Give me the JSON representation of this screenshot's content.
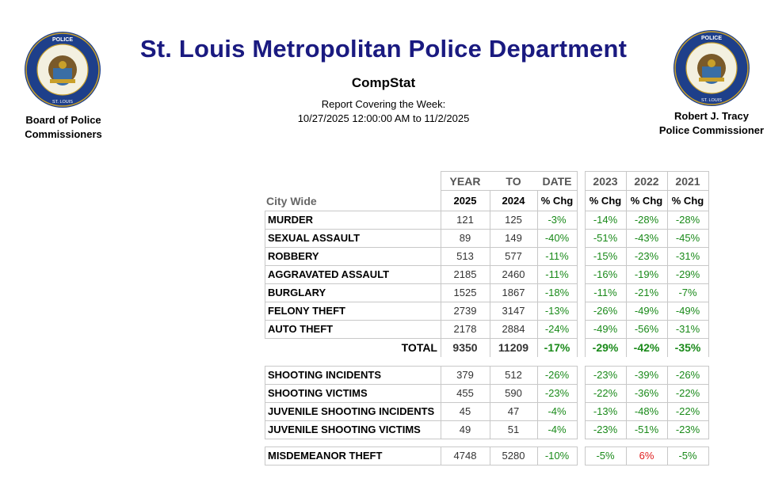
{
  "header": {
    "title": "St. Louis Metropolitan Police Department",
    "subtitle": "CompStat",
    "report_label": "Report Covering the Week:",
    "report_range": "10/27/2025 12:00:00 AM to 11/2/2025",
    "left_caption_1": "Board of Police",
    "left_caption_2": "Commissioners",
    "right_caption_1": "Robert J. Tracy",
    "right_caption_2": "Police Commissioner",
    "seal_text_top": "METROPOLITAN POLICE DEPARTMENT",
    "seal_text_bottom": "ST. LOUIS, MISSOURI"
  },
  "table": {
    "group_header": [
      "YEAR",
      "TO",
      "DATE"
    ],
    "years_header": [
      "2023",
      "2022",
      "2021"
    ],
    "section_label": "City Wide",
    "col_headers": [
      "2025",
      "2024",
      "% Chg",
      "% Chg",
      "% Chg",
      "% Chg"
    ],
    "crimes": [
      {
        "label": "MURDER",
        "y2025": "121",
        "y2024": "125",
        "chg": "-3%",
        "c2023": "-14%",
        "c2022": "-28%",
        "c2021": "-28%"
      },
      {
        "label": "SEXUAL ASSAULT",
        "y2025": "89",
        "y2024": "149",
        "chg": "-40%",
        "c2023": "-51%",
        "c2022": "-43%",
        "c2021": "-45%"
      },
      {
        "label": "ROBBERY",
        "y2025": "513",
        "y2024": "577",
        "chg": "-11%",
        "c2023": "-15%",
        "c2022": "-23%",
        "c2021": "-31%"
      },
      {
        "label": "AGGRAVATED ASSAULT",
        "y2025": "2185",
        "y2024": "2460",
        "chg": "-11%",
        "c2023": "-16%",
        "c2022": "-19%",
        "c2021": "-29%"
      },
      {
        "label": "BURGLARY",
        "y2025": "1525",
        "y2024": "1867",
        "chg": "-18%",
        "c2023": "-11%",
        "c2022": "-21%",
        "c2021": "-7%"
      },
      {
        "label": "FELONY THEFT",
        "y2025": "2739",
        "y2024": "3147",
        "chg": "-13%",
        "c2023": "-26%",
        "c2022": "-49%",
        "c2021": "-49%"
      },
      {
        "label": "AUTO THEFT",
        "y2025": "2178",
        "y2024": "2884",
        "chg": "-24%",
        "c2023": "-49%",
        "c2022": "-56%",
        "c2021": "-31%"
      }
    ],
    "total": {
      "label": "TOTAL",
      "y2025": "9350",
      "y2024": "11209",
      "chg": "-17%",
      "c2023": "-29%",
      "c2022": "-42%",
      "c2021": "-35%"
    },
    "shootings": [
      {
        "label": "SHOOTING INCIDENTS",
        "y2025": "379",
        "y2024": "512",
        "chg": "-26%",
        "c2023": "-23%",
        "c2022": "-39%",
        "c2021": "-26%"
      },
      {
        "label": "SHOOTING VICTIMS",
        "y2025": "455",
        "y2024": "590",
        "chg": "-23%",
        "c2023": "-22%",
        "c2022": "-36%",
        "c2021": "-22%"
      },
      {
        "label": "JUVENILE SHOOTING INCIDENTS",
        "y2025": "45",
        "y2024": "47",
        "chg": "-4%",
        "c2023": "-13%",
        "c2022": "-48%",
        "c2021": "-22%"
      },
      {
        "label": "JUVENILE SHOOTING VICTIMS",
        "y2025": "49",
        "y2024": "51",
        "chg": "-4%",
        "c2023": "-23%",
        "c2022": "-51%",
        "c2021": "-23%"
      }
    ],
    "misdemeanor": {
      "label": "MISDEMEANOR THEFT",
      "y2025": "4748",
      "y2024": "5280",
      "chg": "-10%",
      "c2023": "-5%",
      "c2022": "6%",
      "c2021": "-5%"
    },
    "colors": {
      "negative": "#1a8a1a",
      "positive": "#e02020",
      "title": "#1a1a80"
    }
  }
}
